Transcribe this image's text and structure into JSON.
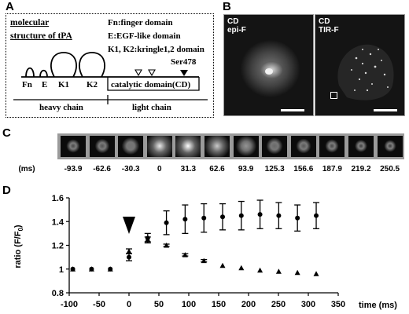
{
  "panels": {
    "a": "A",
    "b": "B",
    "c": "C",
    "d": "D"
  },
  "panel_a": {
    "title_line1": "molecular",
    "title_line2": "structure of tPA",
    "legend": [
      "Fn:finger domain",
      "E:EGF-like domain",
      "K1, K2:kringle1,2 domain"
    ],
    "ser_label": "Ser478",
    "domains": {
      "fn": "Fn",
      "e": "E",
      "k1": "K1",
      "k2": "K2",
      "cd": "catalytic domain(CD)"
    },
    "chains": {
      "heavy": "heavy chain",
      "light": "light chain"
    }
  },
  "panel_b": {
    "left_label": "CD\nepi-F",
    "right_label": "CD\nTIR-F"
  },
  "panel_c": {
    "unit": "(ms)",
    "times": [
      "-93.9",
      "-62.6",
      "-30.3",
      "0",
      "31.3",
      "62.6",
      "93.9",
      "125.3",
      "156.6",
      "187.9",
      "219.2",
      "250.5"
    ],
    "intensity": [
      0.15,
      0.2,
      0.35,
      0.9,
      1.0,
      0.75,
      0.5,
      0.3,
      0.22,
      0.15,
      0.1,
      0.08
    ]
  },
  "chart_data": {
    "type": "scatter",
    "ylabel": "ratio (F/F",
    "ylabel_sub": "0",
    "ylabel_end": ")",
    "xlabel": "time (ms)",
    "xlim": [
      -100,
      350
    ],
    "ylim": [
      0.8,
      1.6
    ],
    "x_ticks": [
      -100,
      -50,
      0,
      50,
      100,
      150,
      200,
      250,
      300,
      350
    ],
    "y_ticks": [
      0.8,
      1,
      1.2,
      1.4,
      1.6
    ],
    "y_tick_labels": [
      "0.8",
      "1",
      "1.2",
      "1.4",
      "1.6"
    ],
    "x_tick_labels": [
      "-100",
      "-50",
      "0",
      "50",
      "100",
      "150",
      "200",
      "250",
      "300",
      "350"
    ],
    "stimulus_time": 0,
    "series": [
      {
        "marker": "circle",
        "x": [
          -94,
          -62.6,
          -31.3,
          0,
          31.3,
          62.6,
          93.9,
          125.3,
          156.6,
          187.9,
          219.2,
          250.5,
          281.8,
          313.2
        ],
        "y": [
          1.0,
          1.0,
          1.0,
          1.1,
          1.26,
          1.39,
          1.42,
          1.43,
          1.44,
          1.45,
          1.46,
          1.45,
          1.43,
          1.45
        ],
        "err": [
          0,
          0,
          0,
          0.03,
          0.04,
          0.1,
          0.12,
          0.12,
          0.11,
          0.12,
          0.12,
          0.11,
          0.11,
          0.11
        ]
      },
      {
        "marker": "triangle",
        "x": [
          -94,
          -62.6,
          -31.3,
          0,
          31.3,
          62.6,
          93.9,
          125.3,
          156.6,
          187.9,
          219.2,
          250.5,
          281.8,
          313.2
        ],
        "y": [
          1.0,
          1.0,
          1.0,
          1.15,
          1.25,
          1.2,
          1.12,
          1.07,
          1.03,
          1.01,
          0.99,
          0.98,
          0.97,
          0.96
        ],
        "err": [
          0,
          0,
          0,
          0.02,
          0.02,
          0.01,
          0.01,
          0.01,
          0,
          0,
          0,
          0,
          0,
          0
        ]
      }
    ]
  }
}
